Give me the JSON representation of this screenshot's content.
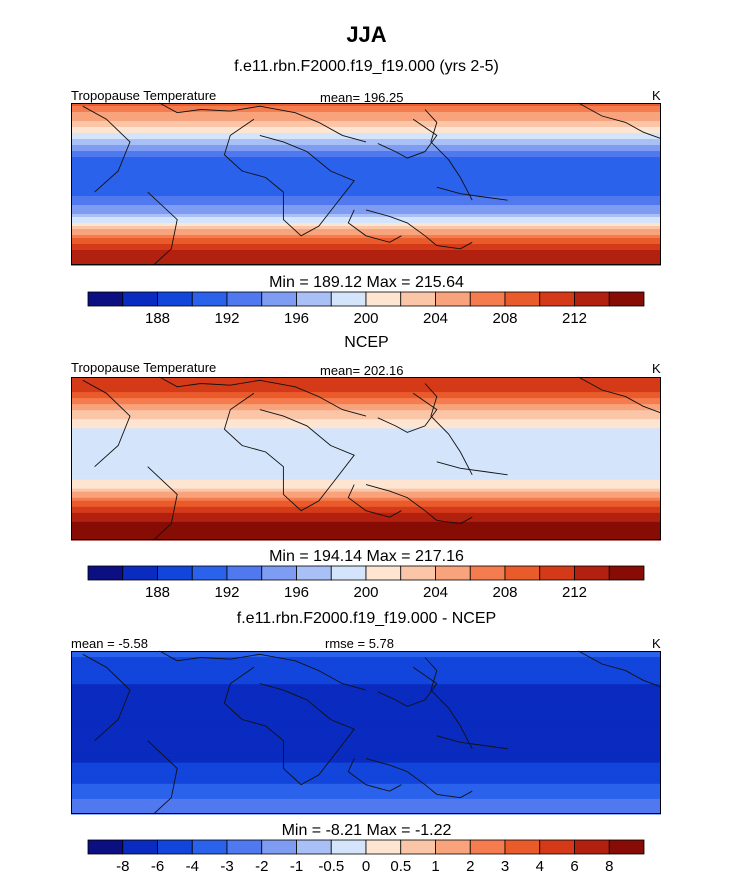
{
  "page": {
    "season": "JJA",
    "model_title": "f.e11.rbn.F2000.f19_f19.000 (yrs 2-5)",
    "obs_title": "NCEP",
    "diff_title": "f.e11.rbn.F2000.f19_f19.000 - NCEP"
  },
  "chart_data": [
    {
      "type": "heatmap",
      "kind": "global-map",
      "label_left": "Tropopause Temperature",
      "label_center": "mean= 196.25",
      "label_right": "K",
      "minmax": "Min = 189.12 Max = 215.64",
      "variable": "Tropopause Temperature",
      "units": "K",
      "mean": 196.25,
      "min": 189.12,
      "max": 215.64,
      "colorbar_levels": [
        186,
        188,
        190,
        192,
        194,
        196,
        198,
        200,
        202,
        204,
        206,
        208,
        210,
        212,
        214
      ],
      "colorbar_tick_labels": [
        "188",
        "192",
        "196",
        "200",
        "204",
        "208",
        "212"
      ],
      "colorbar_colors": [
        "#0b0f82",
        "#0a2bbf",
        "#1245dc",
        "#2a62ec",
        "#5179ef",
        "#7d9cf2",
        "#a8c0f6",
        "#d3e4fb",
        "#fde5d2",
        "#fbc5a8",
        "#f8a37c",
        "#f57c4f",
        "#ea5b2c",
        "#d43a17",
        "#b22010",
        "#860c05"
      ],
      "zonal_profile": [
        {
          "lat": 90,
          "value": 209
        },
        {
          "lat": 75,
          "value": 205
        },
        {
          "lat": 60,
          "value": 201
        },
        {
          "lat": 45,
          "value": 196
        },
        {
          "lat": 30,
          "value": 192
        },
        {
          "lat": 15,
          "value": 191
        },
        {
          "lat": 0,
          "value": 191
        },
        {
          "lat": -15,
          "value": 192
        },
        {
          "lat": -30,
          "value": 195
        },
        {
          "lat": -45,
          "value": 201
        },
        {
          "lat": -60,
          "value": 208
        },
        {
          "lat": -75,
          "value": 212
        },
        {
          "lat": -90,
          "value": 214
        }
      ]
    },
    {
      "type": "heatmap",
      "kind": "global-map",
      "label_left": "Tropopause Temperature",
      "label_center": "mean= 202.16",
      "label_right": "K",
      "minmax": "Min = 194.14 Max = 217.16",
      "variable": "Tropopause Temperature",
      "units": "K",
      "mean": 202.16,
      "min": 194.14,
      "max": 217.16,
      "colorbar_levels": [
        186,
        188,
        190,
        192,
        194,
        196,
        198,
        200,
        202,
        204,
        206,
        208,
        210,
        212,
        214
      ],
      "colorbar_tick_labels": [
        "188",
        "192",
        "196",
        "200",
        "204",
        "208",
        "212"
      ],
      "colorbar_colors": [
        "#0b0f82",
        "#0a2bbf",
        "#1245dc",
        "#2a62ec",
        "#5179ef",
        "#7d9cf2",
        "#a8c0f6",
        "#d3e4fb",
        "#fde5d2",
        "#fbc5a8",
        "#f8a37c",
        "#f57c4f",
        "#ea5b2c",
        "#d43a17",
        "#b22010",
        "#860c05"
      ],
      "zonal_profile": [
        {
          "lat": 90,
          "value": 212
        },
        {
          "lat": 75,
          "value": 210
        },
        {
          "lat": 60,
          "value": 206
        },
        {
          "lat": 45,
          "value": 202
        },
        {
          "lat": 30,
          "value": 199
        },
        {
          "lat": 15,
          "value": 198
        },
        {
          "lat": 0,
          "value": 198
        },
        {
          "lat": -15,
          "value": 199
        },
        {
          "lat": -30,
          "value": 201
        },
        {
          "lat": -45,
          "value": 207
        },
        {
          "lat": -60,
          "value": 212
        },
        {
          "lat": -75,
          "value": 215
        },
        {
          "lat": -90,
          "value": 216
        }
      ]
    },
    {
      "type": "heatmap",
      "kind": "global-map-difference",
      "label_left": "mean =  -5.58",
      "label_center": "rmse =   5.78",
      "label_right": "K",
      "minmax": "Min =  -8.21 Max =  -1.22",
      "units": "K",
      "mean": -5.58,
      "rmse": 5.78,
      "min": -8.21,
      "max": -1.22,
      "colorbar_levels": [
        -8,
        -6,
        -4,
        -3,
        -2,
        -1,
        -0.5,
        0,
        0.5,
        1,
        2,
        3,
        4,
        6,
        8
      ],
      "colorbar_tick_labels": [
        "-8",
        "-6",
        "-4",
        "-3",
        "-2",
        "-1",
        "-0.5",
        "0",
        "0.5",
        "1",
        "2",
        "3",
        "4",
        "6",
        "8"
      ],
      "colorbar_colors": [
        "#0b0f82",
        "#0a2bbf",
        "#1245dc",
        "#2a62ec",
        "#5179ef",
        "#7d9cf2",
        "#a8c0f6",
        "#d3e4fb",
        "#fde5d2",
        "#fbc5a8",
        "#f8a37c",
        "#f57c4f",
        "#ea5b2c",
        "#d43a17",
        "#b22010",
        "#860c05"
      ],
      "zonal_profile": [
        {
          "lat": 90,
          "value": -3.5
        },
        {
          "lat": 75,
          "value": -4.5
        },
        {
          "lat": 60,
          "value": -5.5
        },
        {
          "lat": 45,
          "value": -6.5
        },
        {
          "lat": 30,
          "value": -7.2
        },
        {
          "lat": 15,
          "value": -7.4
        },
        {
          "lat": 0,
          "value": -7
        },
        {
          "lat": -15,
          "value": -6.8
        },
        {
          "lat": -30,
          "value": -6.2
        },
        {
          "lat": -45,
          "value": -5
        },
        {
          "lat": -60,
          "value": -3.6
        },
        {
          "lat": -75,
          "value": -3
        },
        {
          "lat": -90,
          "value": -2.6
        }
      ]
    }
  ]
}
